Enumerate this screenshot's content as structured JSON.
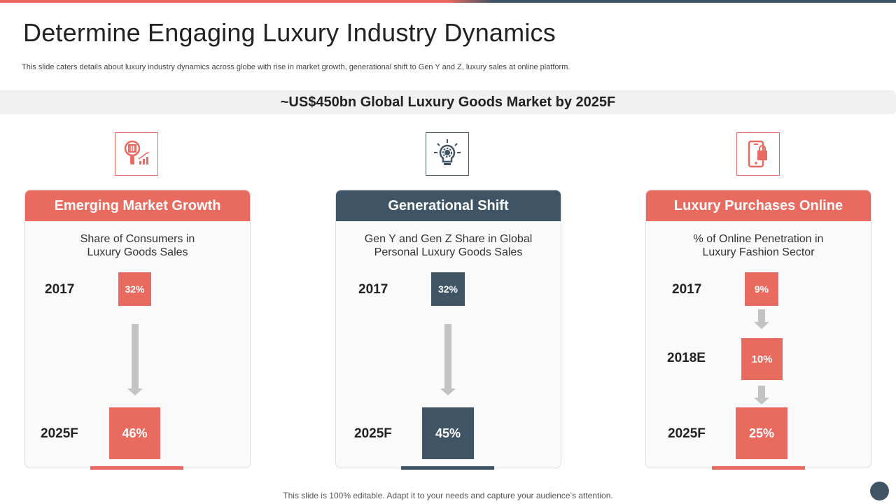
{
  "title": "Determine Engaging Luxury Industry Dynamics",
  "subtitle": "This slide caters details about luxury industry dynamics across globe with rise in market growth, generational shift to Gen Y and Z, luxury sales at online platform.",
  "banner": "~US$450bn Global Luxury Goods Market by 2025F",
  "colors": {
    "coral": "#e96a5f",
    "slate": "#3f5465",
    "arrow": "#c3c3c3"
  },
  "cards": [
    {
      "header": "Emerging Market Growth",
      "icon": "market-search-chart-icon",
      "desc_line1": "Share of Consumers in",
      "desc_line2": "Luxury Goods Sales",
      "rows": [
        {
          "year": "2017",
          "value": "32%"
        },
        {
          "year": "2025F",
          "value": "46%"
        }
      ]
    },
    {
      "header": "Generational Shift",
      "icon": "lightbulb-gear-icon",
      "desc_line1": "Gen Y and Gen Z Share in Global",
      "desc_line2": "Personal Luxury Goods Sales",
      "rows": [
        {
          "year": "2017",
          "value": "32%"
        },
        {
          "year": "2025F",
          "value": "45%"
        }
      ]
    },
    {
      "header": "Luxury Purchases Online",
      "icon": "mobile-shopping-bag-icon",
      "desc_line1": "% of Online Penetration in",
      "desc_line2": "Luxury Fashion Sector",
      "rows": [
        {
          "year": "2017",
          "value": "9%"
        },
        {
          "year": "2018E",
          "value": "10%"
        },
        {
          "year": "2025F",
          "value": "25%"
        }
      ]
    }
  ],
  "footer": "This slide is 100% editable. Adapt it to your needs and capture your audience’s attention."
}
